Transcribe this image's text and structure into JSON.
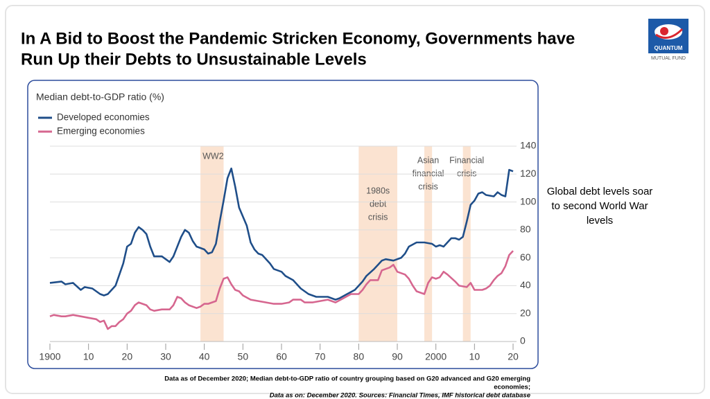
{
  "slide": {
    "title": [
      "In A Bid to Boost the Pandemic Stricken Economy, Governments have",
      "Run Up their Debts to Unsustainable Levels"
    ],
    "note": [
      "Global debt levels soar",
      "to second World War",
      "levels"
    ],
    "footnotes": [
      "Data as of December 2020; Median debt-to-GDP ratio of country grouping based on G20 advanced and G20 emerging",
      "economies;",
      "Data as on: December 2020. Sources: Financial Times, IMF historical debt database"
    ]
  },
  "logo": {
    "name": "QUANTUM",
    "sub": "MUTUAL FUND"
  },
  "chart_data": {
    "type": "line",
    "title": "Median debt-to-GDP ratio (%)",
    "xlim": [
      1900,
      2020
    ],
    "xticks": [
      1900,
      {
        "value": 1910,
        "label": "10"
      },
      {
        "value": 1920,
        "label": "20"
      },
      {
        "value": 1930,
        "label": "30"
      },
      {
        "value": 1940,
        "label": "40"
      },
      {
        "value": 1950,
        "label": "50"
      },
      {
        "value": 1960,
        "label": "60"
      },
      {
        "value": 1970,
        "label": "70"
      },
      {
        "value": 1980,
        "label": "80"
      },
      {
        "value": 1990,
        "label": "90"
      },
      2000,
      {
        "value": 2010,
        "label": "10"
      },
      {
        "value": 2020,
        "label": "20"
      }
    ],
    "ylim": [
      0,
      140
    ],
    "yticks": [
      0,
      20,
      40,
      60,
      80,
      100,
      120,
      140
    ],
    "grid": true,
    "legend": "top-left",
    "bands": [
      {
        "label": [
          "WW2"
        ],
        "start": 1939,
        "end": 1945
      },
      {
        "label": [
          "1980s",
          "debt",
          "crisis"
        ],
        "start": 1980,
        "end": 1990
      },
      {
        "label": [
          "Asian",
          "financial",
          "crisis"
        ],
        "start": 1997,
        "end": 1999
      },
      {
        "label": [
          "Financial",
          "crisis"
        ],
        "start": 2007,
        "end": 2009
      }
    ],
    "band_color": "#fbe3d1",
    "series": [
      {
        "name": "Developed economies",
        "color": "#1f4e89",
        "x": [
          1900,
          1903,
          1904,
          1906,
          1908,
          1909,
          1911,
          1913,
          1914,
          1915,
          1917,
          1919,
          1920,
          1921,
          1922,
          1923,
          1924,
          1925,
          1926,
          1927,
          1929,
          1931,
          1932,
          1934,
          1935,
          1936,
          1937,
          1938,
          1939,
          1940,
          1941,
          1942,
          1943,
          1944,
          1945,
          1946,
          1947,
          1948,
          1949,
          1951,
          1952,
          1953,
          1954,
          1955,
          1957,
          1958,
          1960,
          1961,
          1963,
          1965,
          1967,
          1969,
          1972,
          1974,
          1975,
          1977,
          1979,
          1981,
          1982,
          1984,
          1985,
          1986,
          1987,
          1989,
          1991,
          1992,
          1993,
          1995,
          1997,
          1999,
          2000,
          2001,
          2002,
          2004,
          2005,
          2006,
          2007,
          2008,
          2009,
          2010,
          2011,
          2012,
          2013,
          2015,
          2016,
          2017,
          2018,
          2019,
          2020
        ],
        "values": [
          42,
          43,
          41,
          42,
          37,
          39,
          38,
          34,
          33,
          34,
          40,
          56,
          68,
          70,
          78,
          82,
          80,
          77,
          68,
          61,
          61,
          57,
          61,
          75,
          80,
          78,
          72,
          68,
          67,
          66,
          63,
          64,
          70,
          86,
          101,
          117,
          124,
          111,
          96,
          83,
          71,
          66,
          63,
          62,
          56,
          52,
          50,
          47,
          44,
          38,
          34,
          32,
          32,
          30,
          31,
          34,
          37,
          43,
          47,
          52,
          55,
          58,
          59,
          58,
          60,
          63,
          68,
          71,
          71,
          70,
          68,
          69,
          68,
          74,
          74,
          73,
          75,
          86,
          98,
          101,
          106,
          107,
          105,
          104,
          107,
          105,
          104,
          123,
          122
        ]
      },
      {
        "name": "Emerging economies",
        "color": "#d6668f",
        "x": [
          1900,
          1901,
          1903,
          1904,
          1906,
          1908,
          1910,
          1912,
          1913,
          1914,
          1915,
          1916,
          1917,
          1918,
          1919,
          1920,
          1921,
          1922,
          1923,
          1924,
          1925,
          1926,
          1927,
          1929,
          1931,
          1932,
          1933,
          1934,
          1935,
          1936,
          1938,
          1939,
          1940,
          1941,
          1942,
          1943,
          1944,
          1945,
          1946,
          1947,
          1948,
          1949,
          1950,
          1952,
          1954,
          1956,
          1958,
          1960,
          1962,
          1963,
          1965,
          1966,
          1968,
          1970,
          1972,
          1974,
          1976,
          1978,
          1980,
          1981,
          1982,
          1983,
          1985,
          1986,
          1988,
          1989,
          1990,
          1992,
          1993,
          1994,
          1995,
          1997,
          1998,
          1999,
          2000,
          2001,
          2002,
          2003,
          2005,
          2006,
          2008,
          2009,
          2010,
          2012,
          2013,
          2014,
          2015,
          2016,
          2017,
          2018,
          2019,
          2020
        ],
        "values": [
          18,
          19,
          18,
          18,
          19,
          18,
          17,
          16,
          14,
          15,
          9,
          11,
          11,
          14,
          16,
          20,
          22,
          26,
          28,
          27,
          26,
          23,
          22,
          23,
          23,
          26,
          32,
          31,
          28,
          26,
          24,
          25,
          27,
          27,
          28,
          29,
          38,
          45,
          46,
          41,
          37,
          36,
          33,
          30,
          29,
          28,
          27,
          27,
          28,
          30,
          30,
          28,
          28,
          29,
          30,
          28,
          31,
          34,
          34,
          37,
          41,
          44,
          44,
          51,
          53,
          55,
          50,
          48,
          45,
          40,
          36,
          34,
          42,
          46,
          45,
          46,
          50,
          48,
          43,
          40,
          39,
          42,
          37,
          37,
          38,
          40,
          44,
          47,
          49,
          54,
          62,
          65
        ]
      }
    ]
  }
}
